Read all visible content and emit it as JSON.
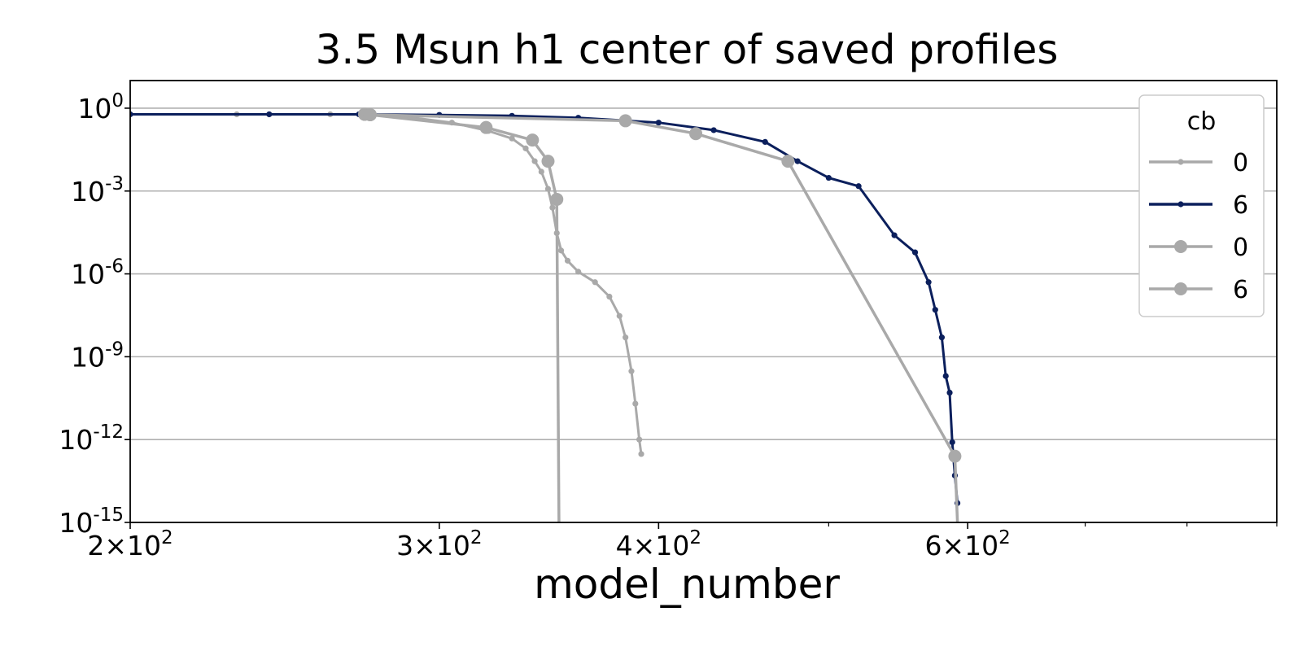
{
  "chart_data": {
    "type": "line",
    "title": "3.5 Msun h1 center of saved profiles",
    "xlabel": "model_number",
    "ylabel": "",
    "xscale": "log",
    "yscale": "log",
    "xlim": [
      200,
      900
    ],
    "ylim": [
      1e-15,
      10
    ],
    "grid": "y-major",
    "legend_placement": "top-right",
    "x_ticks": [
      {
        "value": 200,
        "coef": "2",
        "exp": "2"
      },
      {
        "value": 300,
        "coef": "3",
        "exp": "2"
      },
      {
        "value": 400,
        "coef": "4",
        "exp": "2"
      },
      {
        "value": 600,
        "coef": "6",
        "exp": "2"
      }
    ],
    "y_ticks": [
      {
        "value": 1,
        "exp": "0"
      },
      {
        "value": 0.001,
        "exp": "-3"
      },
      {
        "value": 1e-06,
        "exp": "-6"
      },
      {
        "value": 1e-09,
        "exp": "-9"
      },
      {
        "value": 1e-12,
        "exp": "-12"
      },
      {
        "value": 1e-15,
        "exp": "-15"
      }
    ],
    "legend": {
      "title": "cb",
      "entries": [
        {
          "label": "0",
          "color": "#a9a9a9",
          "marker": "small"
        },
        {
          "label": "6",
          "color": "#0b1f5c",
          "marker": "small"
        },
        {
          "label": "0",
          "color": "#a9a9a9",
          "marker": "large"
        },
        {
          "label": "6",
          "color": "#a9a9a9",
          "marker": "large"
        }
      ]
    },
    "series": [
      {
        "label": "0",
        "color": "#a9a9a9",
        "marker": "small",
        "x": [
          200,
          230,
          260,
          275,
          290,
          305,
          320,
          330,
          336,
          340,
          343,
          346,
          348,
          350,
          352,
          355,
          360,
          368,
          375,
          380,
          383,
          386,
          388,
          390,
          391
        ],
        "y": [
          0.6,
          0.6,
          0.6,
          0.58,
          0.45,
          0.3,
          0.15,
          0.08,
          0.035,
          0.012,
          0.005,
          0.0012,
          0.00025,
          3e-05,
          7e-06,
          3e-06,
          1.2e-06,
          5e-07,
          1.5e-07,
          3e-08,
          5e-09,
          3e-10,
          2e-11,
          1e-12,
          3e-13
        ]
      },
      {
        "label": "6",
        "color": "#0b1f5c",
        "marker": "small",
        "x": [
          200,
          240,
          270,
          300,
          330,
          360,
          400,
          430,
          460,
          480,
          500,
          520,
          545,
          560,
          570,
          575,
          580,
          583,
          586,
          588,
          590,
          592
        ],
        "y": [
          0.6,
          0.6,
          0.6,
          0.57,
          0.53,
          0.45,
          0.3,
          0.16,
          0.06,
          0.012,
          0.003,
          0.0015,
          2.5e-05,
          6e-06,
          5e-07,
          5e-08,
          5e-09,
          2e-10,
          5e-11,
          8e-13,
          5e-14,
          5e-15
        ]
      },
      {
        "label": "0",
        "color": "#a9a9a9",
        "marker": "large",
        "x": [
          272,
          274,
          319,
          339,
          346,
          350,
          351
        ],
        "y": [
          0.6,
          0.58,
          0.2,
          0.07,
          0.012,
          0.0005,
          1e-15
        ]
      },
      {
        "label": "6",
        "color": "#a9a9a9",
        "marker": "large",
        "x": [
          272,
          274,
          383,
          420,
          474,
          590,
          592
        ],
        "y": [
          0.6,
          0.58,
          0.35,
          0.12,
          0.012,
          2.5e-13,
          1e-15
        ]
      }
    ]
  }
}
